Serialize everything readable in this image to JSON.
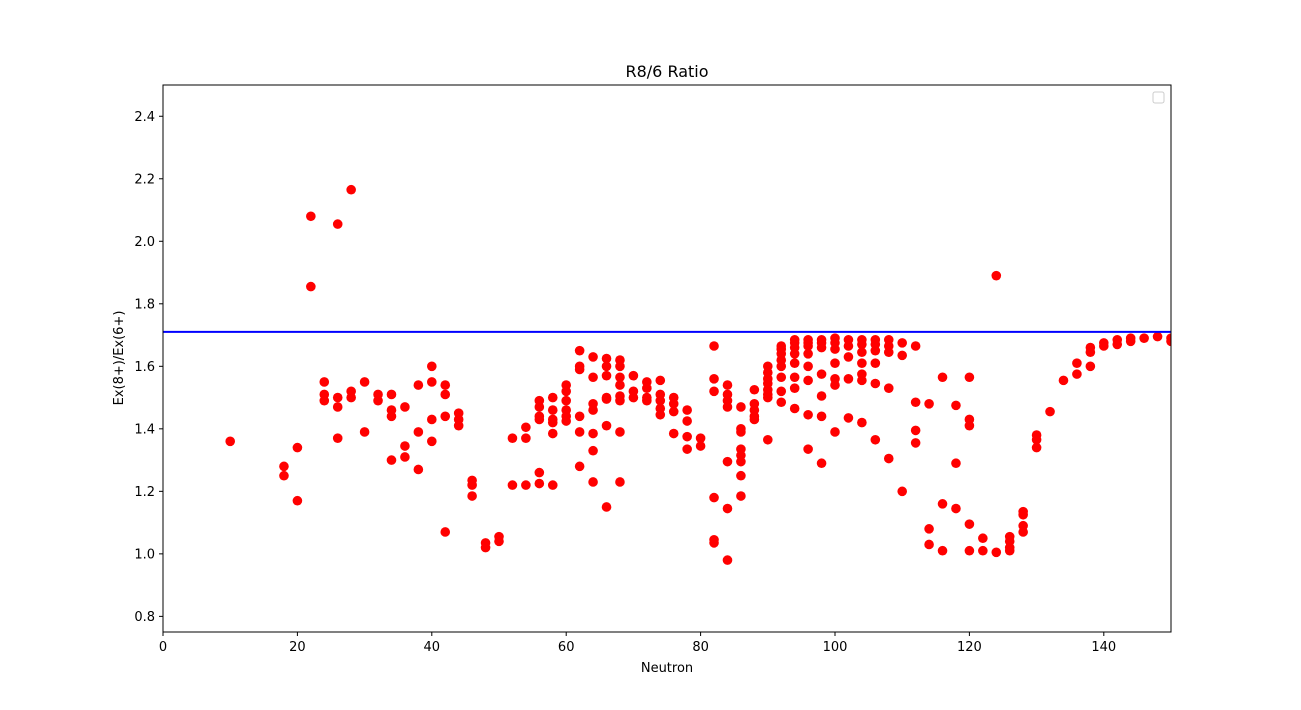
{
  "chart_data": {
    "type": "scatter",
    "title": "R8/6 Ratio",
    "xlabel": "Neutron",
    "ylabel": "Ex(8+)/Ex(6+)",
    "xlim": [
      0,
      150
    ],
    "ylim": [
      0.75,
      2.5
    ],
    "xticks": [
      0,
      20,
      40,
      60,
      80,
      100,
      120,
      140
    ],
    "yticks": [
      0.8,
      1.0,
      1.2,
      1.4,
      1.6,
      1.8,
      2.0,
      2.2,
      2.4
    ],
    "grid": false,
    "legend": {
      "placement": "top-right",
      "entries": []
    },
    "reference_line": {
      "orientation": "horizontal",
      "y": 1.71,
      "color": "#0000ff"
    },
    "series": [
      {
        "color": "#ff0000",
        "marker": "circle",
        "points": [
          [
            10,
            1.36
          ],
          [
            18,
            1.28
          ],
          [
            18,
            1.25
          ],
          [
            20,
            1.34
          ],
          [
            20,
            1.17
          ],
          [
            22,
            2.08
          ],
          [
            22,
            1.855
          ],
          [
            24,
            1.55
          ],
          [
            24,
            1.51
          ],
          [
            24,
            1.49
          ],
          [
            26,
            2.055
          ],
          [
            26,
            1.5
          ],
          [
            26,
            1.47
          ],
          [
            26,
            1.37
          ],
          [
            28,
            2.165
          ],
          [
            28,
            1.52
          ],
          [
            28,
            1.5
          ],
          [
            30,
            1.55
          ],
          [
            30,
            1.39
          ],
          [
            32,
            1.51
          ],
          [
            32,
            1.49
          ],
          [
            34,
            1.51
          ],
          [
            34,
            1.46
          ],
          [
            34,
            1.44
          ],
          [
            34,
            1.3
          ],
          [
            36,
            1.47
          ],
          [
            36,
            1.345
          ],
          [
            36,
            1.31
          ],
          [
            38,
            1.54
          ],
          [
            38,
            1.39
          ],
          [
            38,
            1.27
          ],
          [
            40,
            1.6
          ],
          [
            40,
            1.55
          ],
          [
            40,
            1.43
          ],
          [
            40,
            1.36
          ],
          [
            42,
            1.54
          ],
          [
            42,
            1.51
          ],
          [
            42,
            1.44
          ],
          [
            42,
            1.07
          ],
          [
            44,
            1.45
          ],
          [
            44,
            1.43
          ],
          [
            44,
            1.41
          ],
          [
            46,
            1.235
          ],
          [
            46,
            1.22
          ],
          [
            46,
            1.185
          ],
          [
            48,
            1.035
          ],
          [
            48,
            1.02
          ],
          [
            50,
            1.055
          ],
          [
            50,
            1.04
          ],
          [
            52,
            1.37
          ],
          [
            52,
            1.22
          ],
          [
            54,
            1.405
          ],
          [
            54,
            1.37
          ],
          [
            54,
            1.22
          ],
          [
            56,
            1.49
          ],
          [
            56,
            1.47
          ],
          [
            56,
            1.44
          ],
          [
            56,
            1.43
          ],
          [
            56,
            1.26
          ],
          [
            56,
            1.225
          ],
          [
            58,
            1.5
          ],
          [
            58,
            1.46
          ],
          [
            58,
            1.43
          ],
          [
            58,
            1.42
          ],
          [
            58,
            1.385
          ],
          [
            58,
            1.22
          ],
          [
            60,
            1.54
          ],
          [
            60,
            1.52
          ],
          [
            60,
            1.49
          ],
          [
            60,
            1.46
          ],
          [
            60,
            1.44
          ],
          [
            60,
            1.425
          ],
          [
            62,
            1.65
          ],
          [
            62,
            1.6
          ],
          [
            62,
            1.59
          ],
          [
            62,
            1.44
          ],
          [
            62,
            1.39
          ],
          [
            62,
            1.28
          ],
          [
            64,
            1.63
          ],
          [
            64,
            1.565
          ],
          [
            64,
            1.48
          ],
          [
            64,
            1.46
          ],
          [
            64,
            1.385
          ],
          [
            64,
            1.33
          ],
          [
            64,
            1.23
          ],
          [
            66,
            1.625
          ],
          [
            66,
            1.6
          ],
          [
            66,
            1.57
          ],
          [
            66,
            1.5
          ],
          [
            66,
            1.495
          ],
          [
            66,
            1.41
          ],
          [
            66,
            1.15
          ],
          [
            68,
            1.62
          ],
          [
            68,
            1.6
          ],
          [
            68,
            1.565
          ],
          [
            68,
            1.54
          ],
          [
            68,
            1.505
          ],
          [
            68,
            1.49
          ],
          [
            68,
            1.39
          ],
          [
            68,
            1.23
          ],
          [
            70,
            1.57
          ],
          [
            70,
            1.52
          ],
          [
            70,
            1.5
          ],
          [
            72,
            1.55
          ],
          [
            72,
            1.53
          ],
          [
            72,
            1.5
          ],
          [
            72,
            1.49
          ],
          [
            74,
            1.555
          ],
          [
            74,
            1.51
          ],
          [
            74,
            1.49
          ],
          [
            74,
            1.465
          ],
          [
            74,
            1.445
          ],
          [
            76,
            1.5
          ],
          [
            76,
            1.48
          ],
          [
            76,
            1.455
          ],
          [
            76,
            1.385
          ],
          [
            78,
            1.46
          ],
          [
            78,
            1.425
          ],
          [
            78,
            1.375
          ],
          [
            78,
            1.335
          ],
          [
            80,
            1.37
          ],
          [
            80,
            1.345
          ],
          [
            82,
            1.665
          ],
          [
            82,
            1.56
          ],
          [
            82,
            1.52
          ],
          [
            82,
            1.18
          ],
          [
            82,
            1.045
          ],
          [
            82,
            1.035
          ],
          [
            84,
            1.54
          ],
          [
            84,
            1.51
          ],
          [
            84,
            1.49
          ],
          [
            84,
            1.47
          ],
          [
            84,
            1.295
          ],
          [
            84,
            1.145
          ],
          [
            84,
            0.98
          ],
          [
            86,
            1.47
          ],
          [
            86,
            1.4
          ],
          [
            86,
            1.39
          ],
          [
            86,
            1.335
          ],
          [
            86,
            1.315
          ],
          [
            86,
            1.295
          ],
          [
            86,
            1.25
          ],
          [
            86,
            1.185
          ],
          [
            88,
            1.525
          ],
          [
            88,
            1.48
          ],
          [
            88,
            1.46
          ],
          [
            88,
            1.44
          ],
          [
            88,
            1.43
          ],
          [
            90,
            1.6
          ],
          [
            90,
            1.58
          ],
          [
            90,
            1.56
          ],
          [
            90,
            1.545
          ],
          [
            90,
            1.525
          ],
          [
            90,
            1.51
          ],
          [
            90,
            1.5
          ],
          [
            90,
            1.365
          ],
          [
            92,
            1.665
          ],
          [
            92,
            1.655
          ],
          [
            92,
            1.64
          ],
          [
            92,
            1.62
          ],
          [
            92,
            1.6
          ],
          [
            92,
            1.565
          ],
          [
            92,
            1.52
          ],
          [
            92,
            1.485
          ],
          [
            94,
            1.685
          ],
          [
            94,
            1.675
          ],
          [
            94,
            1.66
          ],
          [
            94,
            1.64
          ],
          [
            94,
            1.61
          ],
          [
            94,
            1.565
          ],
          [
            94,
            1.53
          ],
          [
            94,
            1.465
          ],
          [
            96,
            1.685
          ],
          [
            96,
            1.675
          ],
          [
            96,
            1.665
          ],
          [
            96,
            1.64
          ],
          [
            96,
            1.6
          ],
          [
            96,
            1.555
          ],
          [
            96,
            1.445
          ],
          [
            96,
            1.335
          ],
          [
            98,
            1.685
          ],
          [
            98,
            1.675
          ],
          [
            98,
            1.66
          ],
          [
            98,
            1.575
          ],
          [
            98,
            1.505
          ],
          [
            98,
            1.44
          ],
          [
            98,
            1.29
          ],
          [
            100,
            1.69
          ],
          [
            100,
            1.675
          ],
          [
            100,
            1.655
          ],
          [
            100,
            1.61
          ],
          [
            100,
            1.56
          ],
          [
            100,
            1.54
          ],
          [
            100,
            1.39
          ],
          [
            102,
            1.685
          ],
          [
            102,
            1.665
          ],
          [
            102,
            1.63
          ],
          [
            102,
            1.56
          ],
          [
            102,
            1.435
          ],
          [
            104,
            1.685
          ],
          [
            104,
            1.67
          ],
          [
            104,
            1.645
          ],
          [
            104,
            1.61
          ],
          [
            104,
            1.575
          ],
          [
            104,
            1.555
          ],
          [
            104,
            1.42
          ],
          [
            106,
            1.685
          ],
          [
            106,
            1.67
          ],
          [
            106,
            1.65
          ],
          [
            106,
            1.61
          ],
          [
            106,
            1.545
          ],
          [
            106,
            1.365
          ],
          [
            108,
            1.685
          ],
          [
            108,
            1.665
          ],
          [
            108,
            1.645
          ],
          [
            108,
            1.53
          ],
          [
            108,
            1.305
          ],
          [
            110,
            1.675
          ],
          [
            110,
            1.635
          ],
          [
            110,
            1.2
          ],
          [
            112,
            1.665
          ],
          [
            112,
            1.485
          ],
          [
            112,
            1.395
          ],
          [
            112,
            1.355
          ],
          [
            114,
            1.48
          ],
          [
            114,
            1.08
          ],
          [
            114,
            1.03
          ],
          [
            116,
            1.565
          ],
          [
            116,
            1.16
          ],
          [
            116,
            1.01
          ],
          [
            118,
            1.475
          ],
          [
            118,
            1.29
          ],
          [
            118,
            1.145
          ],
          [
            120,
            1.565
          ],
          [
            120,
            1.43
          ],
          [
            120,
            1.41
          ],
          [
            120,
            1.095
          ],
          [
            120,
            1.01
          ],
          [
            122,
            1.05
          ],
          [
            122,
            1.01
          ],
          [
            124,
            1.89
          ],
          [
            124,
            1.005
          ],
          [
            126,
            1.055
          ],
          [
            126,
            1.04
          ],
          [
            126,
            1.02
          ],
          [
            126,
            1.01
          ],
          [
            128,
            1.135
          ],
          [
            128,
            1.125
          ],
          [
            128,
            1.09
          ],
          [
            128,
            1.07
          ],
          [
            130,
            1.38
          ],
          [
            130,
            1.365
          ],
          [
            130,
            1.34
          ],
          [
            132,
            1.455
          ],
          [
            134,
            1.555
          ],
          [
            136,
            1.61
          ],
          [
            136,
            1.575
          ],
          [
            138,
            1.66
          ],
          [
            138,
            1.645
          ],
          [
            138,
            1.6
          ],
          [
            140,
            1.675
          ],
          [
            140,
            1.665
          ],
          [
            142,
            1.685
          ],
          [
            142,
            1.67
          ],
          [
            144,
            1.69
          ],
          [
            144,
            1.68
          ],
          [
            146,
            1.69
          ],
          [
            148,
            1.695
          ],
          [
            150,
            1.69
          ],
          [
            150,
            1.68
          ]
        ]
      }
    ]
  }
}
